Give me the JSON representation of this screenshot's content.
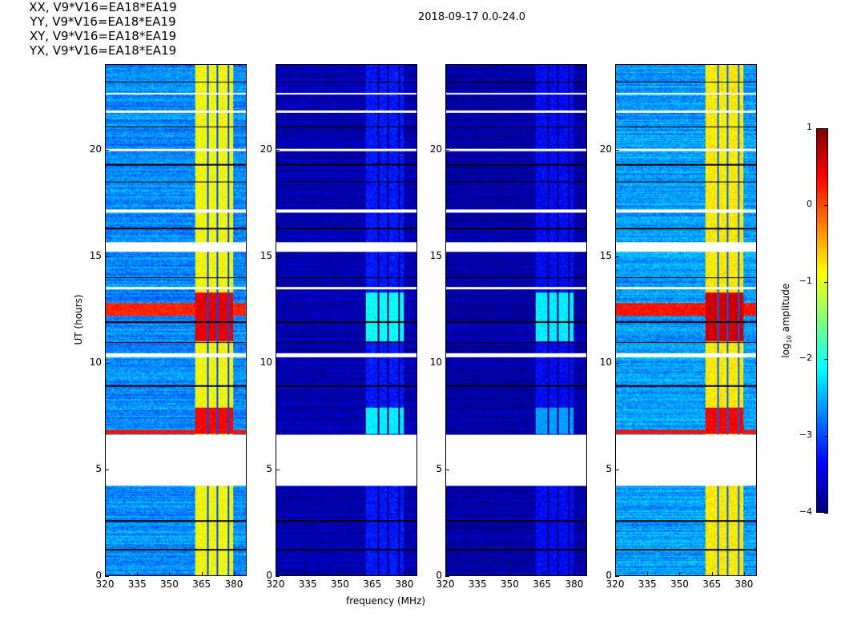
{
  "chart_data": {
    "type": "heatmap",
    "suptitle": "2018-09-17 0.0-24.0",
    "xlabel": "frequency (MHz)",
    "ylabel": "UT (hours)",
    "xlim": [
      320,
      386
    ],
    "ylim": [
      0,
      24
    ],
    "xticks": [
      "320",
      "335",
      "350",
      "365",
      "380"
    ],
    "xtick_values": [
      320,
      335,
      350,
      365,
      380
    ],
    "yticks": [
      "0",
      "5",
      "10",
      "15",
      "20"
    ],
    "ytick_values": [
      0,
      5,
      10,
      15,
      20
    ],
    "colorbar": {
      "label_main": "log",
      "label_sub": "10",
      "label_rest": " amplitude",
      "range": [
        -4,
        1
      ],
      "ticks": [
        "1",
        "0",
        "−1",
        "−2",
        "−3",
        "−4"
      ],
      "tick_values": [
        1,
        0,
        -1,
        -2,
        -3,
        -4
      ],
      "colormap": "jet"
    },
    "rfi_band_mhz": [
      362,
      380
    ],
    "rfi_gaps_mhz": [
      [
        367.6,
        368.3
      ],
      [
        372.2,
        372.9
      ],
      [
        377.4,
        378.1
      ]
    ],
    "flagged_hours": [
      [
        4.2,
        6.6
      ],
      [
        15.2,
        15.65
      ],
      [
        13.45,
        13.55
      ],
      [
        10.25,
        10.45
      ],
      [
        22.6,
        22.7
      ],
      [
        21.75,
        21.85
      ],
      [
        17.05,
        17.2
      ],
      [
        19.95,
        20.05
      ]
    ],
    "dark_rows_hours": [
      1.2,
      2.55,
      8.9,
      10.95,
      11.9,
      14.0,
      16.3,
      18.5,
      19.3,
      21.1,
      23.2
    ],
    "panels": [
      {
        "title": "XX, V9*V16=EA18*EA19",
        "baseline": -2.7,
        "rfi_level": -0.9,
        "event_11_13_level": 0.5,
        "event_6_8_level": 0.4
      },
      {
        "title": "YY, V9*V16=EA18*EA19",
        "baseline": -3.8,
        "rfi_level": -3.3,
        "event_11_13_level": -2.1,
        "event_6_8_level": -2.2
      },
      {
        "title": "XY, V9*V16=EA18*EA19",
        "baseline": -3.85,
        "rfi_level": -3.4,
        "event_11_13_level": -2.2,
        "event_6_8_level": -2.6
      },
      {
        "title": "YX, V9*V16=EA18*EA19",
        "baseline": -2.6,
        "rfi_level": -0.8,
        "event_11_13_level": 0.6,
        "event_6_8_level": 0.4
      }
    ]
  }
}
